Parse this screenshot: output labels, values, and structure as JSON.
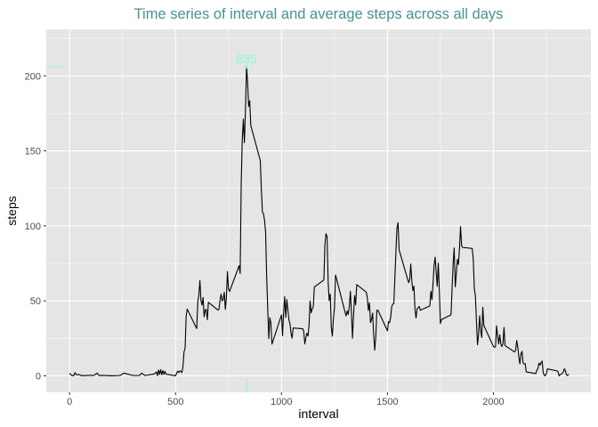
{
  "chart_data": {
    "type": "line",
    "title": "Time series of interval and average steps across all days",
    "xlabel": "interval",
    "ylabel": "steps",
    "xlim": [
      -110,
      2460
    ],
    "ylim": [
      -11,
      231
    ],
    "x_ticks": [
      0,
      500,
      1000,
      1500,
      2000
    ],
    "y_ticks": [
      0,
      50,
      100,
      150,
      200
    ],
    "grid": true,
    "legend": "none",
    "colors": {
      "panel": "#e5e5e5",
      "grid": "#ffffff",
      "line": "#000000",
      "title": "#4a9191",
      "annotation": "#7fffd4"
    },
    "max_point": {
      "x": 835,
      "y": 206,
      "label": "835"
    },
    "rug": {
      "x": 835,
      "y_value": 206
    },
    "series": [
      {
        "values": [
          [
            0,
            1.7
          ],
          [
            10,
            0.3
          ],
          [
            20,
            0.1
          ],
          [
            25,
            2.1
          ],
          [
            35,
            0.5
          ],
          [
            45,
            0.9
          ],
          [
            55,
            0.1
          ],
          [
            100,
            0.3
          ],
          [
            115,
            0.3
          ],
          [
            130,
            1.8
          ],
          [
            140,
            0.2
          ],
          [
            150,
            0.3
          ],
          [
            200,
            0
          ],
          [
            230,
            0.2
          ],
          [
            240,
            0.3
          ],
          [
            255,
            1.8
          ],
          [
            300,
            0.2
          ],
          [
            330,
            0.2
          ],
          [
            340,
            1.8
          ],
          [
            355,
            0.2
          ],
          [
            400,
            1.2
          ],
          [
            410,
            2.6
          ],
          [
            415,
            0
          ],
          [
            420,
            3.9
          ],
          [
            425,
            0.9
          ],
          [
            430,
            4.1
          ],
          [
            435,
            0.7
          ],
          [
            440,
            3.5
          ],
          [
            445,
            1
          ],
          [
            450,
            3
          ],
          [
            455,
            1.1
          ],
          [
            500,
            0
          ],
          [
            505,
            1.6
          ],
          [
            510,
            3.1
          ],
          [
            515,
            2.2
          ],
          [
            520,
            3.3
          ],
          [
            525,
            3.0
          ],
          [
            530,
            2.1
          ],
          [
            535,
            6.1
          ],
          [
            540,
            16
          ],
          [
            545,
            18.3
          ],
          [
            550,
            39.5
          ],
          [
            555,
            44.5
          ],
          [
            600,
            31.5
          ],
          [
            605,
            49.3
          ],
          [
            610,
            53.8
          ],
          [
            615,
            63.5
          ],
          [
            620,
            50
          ],
          [
            625,
            47.1
          ],
          [
            630,
            52.2
          ],
          [
            635,
            39.3
          ],
          [
            640,
            44
          ],
          [
            645,
            44.2
          ],
          [
            650,
            37.4
          ],
          [
            655,
            49
          ],
          [
            700,
            43.8
          ],
          [
            705,
            44.4
          ],
          [
            710,
            50.5
          ],
          [
            715,
            54.5
          ],
          [
            720,
            49.9
          ],
          [
            725,
            50.9
          ],
          [
            730,
            55.7
          ],
          [
            735,
            44.3
          ],
          [
            740,
            52.3
          ],
          [
            745,
            69.5
          ],
          [
            750,
            57.8
          ],
          [
            755,
            56.2
          ],
          [
            800,
            73.4
          ],
          [
            805,
            68.2
          ],
          [
            810,
            129.4
          ],
          [
            815,
            157.5
          ],
          [
            820,
            171.2
          ],
          [
            825,
            155.4
          ],
          [
            830,
            177.3
          ],
          [
            835,
            206.2
          ],
          [
            840,
            195.9
          ],
          [
            845,
            179.6
          ],
          [
            850,
            183.4
          ],
          [
            855,
            167
          ],
          [
            900,
            143.5
          ],
          [
            905,
            124
          ],
          [
            910,
            109.1
          ],
          [
            915,
            108.1
          ],
          [
            920,
            103.7
          ],
          [
            925,
            95.9
          ],
          [
            930,
            66.2
          ],
          [
            935,
            45.2
          ],
          [
            940,
            24.8
          ],
          [
            945,
            38.8
          ],
          [
            950,
            35
          ],
          [
            955,
            21.1
          ],
          [
            1000,
            40.6
          ],
          [
            1005,
            26.7
          ],
          [
            1010,
            42.4
          ],
          [
            1015,
            52.7
          ],
          [
            1020,
            38.9
          ],
          [
            1025,
            50.8
          ],
          [
            1030,
            44.3
          ],
          [
            1035,
            37.4
          ],
          [
            1040,
            34.7
          ],
          [
            1045,
            28.3
          ],
          [
            1050,
            25.1
          ],
          [
            1055,
            31.9
          ],
          [
            1100,
            31.4
          ],
          [
            1105,
            29.7
          ],
          [
            1110,
            21.3
          ],
          [
            1115,
            25.5
          ],
          [
            1120,
            28.4
          ],
          [
            1125,
            26.5
          ],
          [
            1130,
            33.4
          ],
          [
            1135,
            49.9
          ],
          [
            1140,
            42
          ],
          [
            1145,
            44.6
          ],
          [
            1150,
            46
          ],
          [
            1155,
            59.2
          ],
          [
            1200,
            63.9
          ],
          [
            1205,
            87.7
          ],
          [
            1210,
            94.8
          ],
          [
            1215,
            92.8
          ],
          [
            1220,
            63.4
          ],
          [
            1225,
            50.2
          ],
          [
            1230,
            54.5
          ],
          [
            1235,
            32.4
          ],
          [
            1240,
            26.5
          ],
          [
            1245,
            37.7
          ],
          [
            1250,
            45.1
          ],
          [
            1255,
            67.3
          ],
          [
            1300,
            42.3
          ],
          [
            1305,
            39.9
          ],
          [
            1310,
            43.3
          ],
          [
            1315,
            40.9
          ],
          [
            1320,
            46.2
          ],
          [
            1325,
            56.4
          ],
          [
            1330,
            42.8
          ],
          [
            1335,
            25.1
          ],
          [
            1340,
            40
          ],
          [
            1345,
            53.5
          ],
          [
            1350,
            47.3
          ],
          [
            1355,
            60.8
          ],
          [
            1400,
            55.8
          ],
          [
            1405,
            51.9
          ],
          [
            1410,
            43.6
          ],
          [
            1415,
            48.7
          ],
          [
            1420,
            35.5
          ],
          [
            1425,
            37.5
          ],
          [
            1430,
            41.8
          ],
          [
            1435,
            27.5
          ],
          [
            1440,
            17.1
          ],
          [
            1445,
            26.1
          ],
          [
            1450,
            43.6
          ],
          [
            1455,
            43.8
          ],
          [
            1500,
            30
          ],
          [
            1505,
            36.1
          ],
          [
            1510,
            35.5
          ],
          [
            1515,
            38.8
          ],
          [
            1520,
            46
          ],
          [
            1525,
            47.8
          ],
          [
            1530,
            48.1
          ],
          [
            1535,
            65.3
          ],
          [
            1540,
            82.9
          ],
          [
            1545,
            98.7
          ],
          [
            1550,
            102.1
          ],
          [
            1555,
            84
          ],
          [
            1600,
            62.1
          ],
          [
            1605,
            64.1
          ],
          [
            1610,
            74.5
          ],
          [
            1615,
            63.2
          ],
          [
            1620,
            56.9
          ],
          [
            1625,
            59.8
          ],
          [
            1630,
            43.9
          ],
          [
            1635,
            38.6
          ],
          [
            1640,
            44.7
          ],
          [
            1645,
            45.5
          ],
          [
            1650,
            46.2
          ],
          [
            1655,
            43.7
          ],
          [
            1700,
            46.6
          ],
          [
            1705,
            56.3
          ],
          [
            1710,
            50.7
          ],
          [
            1715,
            61.2
          ],
          [
            1720,
            73.4
          ],
          [
            1725,
            79.1
          ],
          [
            1730,
            68.9
          ],
          [
            1735,
            59.7
          ],
          [
            1740,
            75.1
          ],
          [
            1745,
            56.5
          ],
          [
            1750,
            34.8
          ],
          [
            1755,
            37.5
          ],
          [
            1800,
            40.7
          ],
          [
            1805,
            58
          ],
          [
            1810,
            74.7
          ],
          [
            1815,
            85.3
          ],
          [
            1820,
            59.3
          ],
          [
            1825,
            67.8
          ],
          [
            1830,
            77.7
          ],
          [
            1835,
            74.2
          ],
          [
            1840,
            85.3
          ],
          [
            1845,
            99.5
          ],
          [
            1850,
            86.6
          ],
          [
            1855,
            85.6
          ],
          [
            1900,
            84.9
          ],
          [
            1905,
            77.8
          ],
          [
            1910,
            58
          ],
          [
            1915,
            53.4
          ],
          [
            1920,
            36.3
          ],
          [
            1925,
            20.7
          ],
          [
            1930,
            27.4
          ],
          [
            1935,
            40
          ],
          [
            1940,
            30.2
          ],
          [
            1945,
            25.5
          ],
          [
            1950,
            45.7
          ],
          [
            1955,
            33.5
          ],
          [
            2000,
            19.6
          ],
          [
            2005,
            19
          ],
          [
            2010,
            19.3
          ],
          [
            2015,
            33.3
          ],
          [
            2020,
            26.8
          ],
          [
            2025,
            21.2
          ],
          [
            2030,
            27.3
          ],
          [
            2035,
            21.3
          ],
          [
            2040,
            19.5
          ],
          [
            2045,
            21.3
          ],
          [
            2050,
            32.3
          ],
          [
            2055,
            20.2
          ],
          [
            2100,
            15.9
          ],
          [
            2105,
            17.2
          ],
          [
            2110,
            23.5
          ],
          [
            2115,
            19.2
          ],
          [
            2120,
            12.5
          ],
          [
            2125,
            8
          ],
          [
            2130,
            14.7
          ],
          [
            2135,
            16.3
          ],
          [
            2140,
            8.7
          ],
          [
            2145,
            7.8
          ],
          [
            2150,
            8.1
          ],
          [
            2155,
            2.6
          ],
          [
            2200,
            1.5
          ],
          [
            2205,
            3.7
          ],
          [
            2210,
            4.8
          ],
          [
            2215,
            8.5
          ],
          [
            2220,
            7.1
          ],
          [
            2225,
            8.7
          ],
          [
            2230,
            9.8
          ],
          [
            2235,
            2.2
          ],
          [
            2240,
            0.3
          ],
          [
            2245,
            0.1
          ],
          [
            2250,
            1.6
          ],
          [
            2255,
            4.6
          ],
          [
            2300,
            3.3
          ],
          [
            2305,
            2.8
          ],
          [
            2310,
            0
          ],
          [
            2315,
            0.8
          ],
          [
            2320,
            1
          ],
          [
            2325,
            1.6
          ],
          [
            2330,
            2.6
          ],
          [
            2335,
            4.7
          ],
          [
            2340,
            3.3
          ],
          [
            2345,
            0.6
          ],
          [
            2350,
            0.2
          ],
          [
            2355,
            1.1
          ]
        ]
      }
    ]
  }
}
